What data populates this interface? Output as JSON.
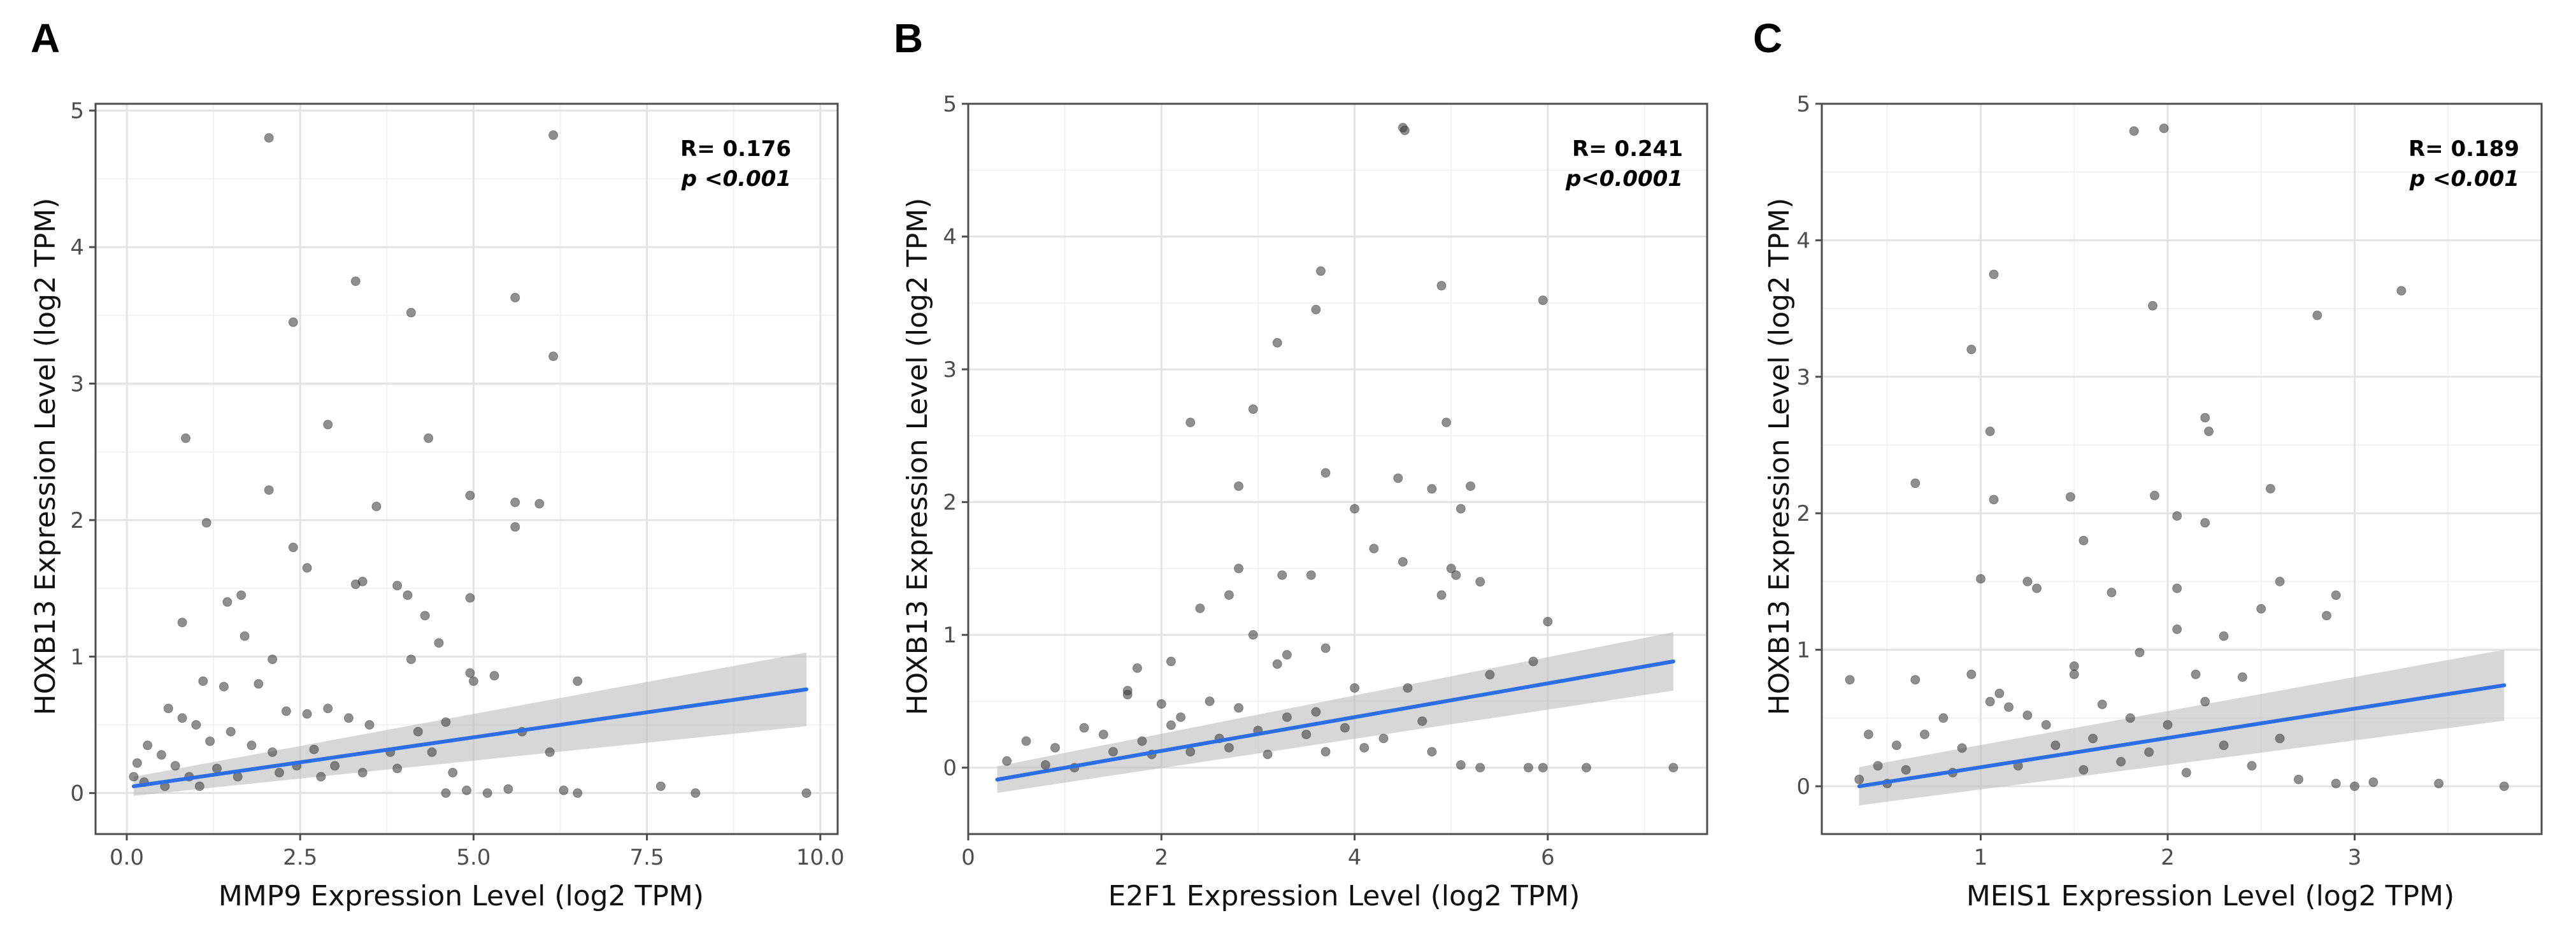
{
  "chart_data": [
    {
      "panel": "A",
      "type": "scatter",
      "xlabel": "MMP9 Expression Level (log2 TPM)",
      "ylabel": "HOXB13 Expression Level (log2 TPM)",
      "xlim": [
        -0.45,
        10.25
      ],
      "ylim": [
        -0.3,
        5.05
      ],
      "xticks": [
        0,
        2.5,
        5,
        7.5,
        10
      ],
      "xtick_labels": [
        "0.0",
        "2.5",
        "5.0",
        "7.5",
        "10.0"
      ],
      "xminor": [
        1.25,
        3.75,
        6.25,
        8.75
      ],
      "yticks": [
        0,
        1,
        2,
        3,
        4,
        5
      ],
      "yminor": [
        0.5,
        1.5,
        2.5,
        3.5,
        4.5
      ],
      "r_text": "R= 0.176",
      "p_text": "p <0.001",
      "fit": {
        "x0": 0.1,
        "x1": 9.8,
        "y0": 0.05,
        "y1": 0.76,
        "band0": 0.07,
        "band1": 0.27
      },
      "points": [
        [
          2.05,
          4.8
        ],
        [
          6.15,
          4.82
        ],
        [
          3.3,
          3.75
        ],
        [
          4.1,
          3.52
        ],
        [
          5.6,
          3.63
        ],
        [
          2.4,
          3.45
        ],
        [
          6.15,
          3.2
        ],
        [
          2.9,
          2.7
        ],
        [
          4.35,
          2.6
        ],
        [
          0.85,
          2.6
        ],
        [
          2.05,
          2.22
        ],
        [
          3.6,
          2.1
        ],
        [
          4.95,
          2.18
        ],
        [
          5.6,
          2.13
        ],
        [
          5.95,
          2.12
        ],
        [
          5.6,
          1.95
        ],
        [
          1.15,
          1.98
        ],
        [
          2.4,
          1.8
        ],
        [
          2.6,
          1.65
        ],
        [
          3.3,
          1.53
        ],
        [
          3.4,
          1.55
        ],
        [
          3.9,
          1.52
        ],
        [
          4.05,
          1.45
        ],
        [
          4.3,
          1.3
        ],
        [
          4.95,
          1.43
        ],
        [
          1.65,
          1.45
        ],
        [
          1.45,
          1.4
        ],
        [
          0.8,
          1.25
        ],
        [
          1.7,
          1.15
        ],
        [
          4.5,
          1.1
        ],
        [
          4.1,
          0.98
        ],
        [
          2.1,
          0.98
        ],
        [
          4.95,
          0.88
        ],
        [
          5.0,
          0.82
        ],
        [
          5.3,
          0.86
        ],
        [
          6.5,
          0.82
        ],
        [
          1.1,
          0.82
        ],
        [
          1.4,
          0.78
        ],
        [
          1.9,
          0.8
        ],
        [
          0.6,
          0.62
        ],
        [
          0.8,
          0.55
        ],
        [
          1.0,
          0.5
        ],
        [
          1.5,
          0.45
        ],
        [
          2.3,
          0.6
        ],
        [
          2.6,
          0.58
        ],
        [
          2.9,
          0.62
        ],
        [
          3.2,
          0.55
        ],
        [
          3.5,
          0.5
        ],
        [
          4.2,
          0.45
        ],
        [
          4.6,
          0.52
        ],
        [
          5.7,
          0.45
        ],
        [
          6.1,
          0.3
        ],
        [
          0.3,
          0.35
        ],
        [
          0.5,
          0.28
        ],
        [
          0.7,
          0.2
        ],
        [
          1.2,
          0.38
        ],
        [
          1.8,
          0.35
        ],
        [
          2.1,
          0.3
        ],
        [
          2.7,
          0.32
        ],
        [
          3.0,
          0.2
        ],
        [
          3.8,
          0.3
        ],
        [
          4.4,
          0.3
        ],
        [
          0.1,
          0.12
        ],
        [
          0.25,
          0.08
        ],
        [
          0.9,
          0.12
        ],
        [
          1.3,
          0.18
        ],
        [
          1.6,
          0.12
        ],
        [
          2.2,
          0.15
        ],
        [
          2.8,
          0.12
        ],
        [
          3.4,
          0.15
        ],
        [
          3.9,
          0.18
        ],
        [
          4.7,
          0.15
        ],
        [
          0.15,
          0.22
        ],
        [
          0.55,
          0.05
        ],
        [
          1.05,
          0.05
        ],
        [
          2.45,
          0.2
        ],
        [
          7.7,
          0.05
        ],
        [
          8.2,
          0.0
        ],
        [
          9.8,
          0.0
        ],
        [
          6.5,
          0.0
        ],
        [
          6.3,
          0.02
        ],
        [
          5.5,
          0.03
        ],
        [
          5.2,
          0.0
        ],
        [
          4.9,
          0.02
        ],
        [
          4.6,
          0.0
        ]
      ]
    },
    {
      "panel": "B",
      "type": "scatter",
      "xlabel": "E2F1 Expression Level (log2 TPM)",
      "ylabel": "HOXB13 Expression Level (log2 TPM)",
      "xlim": [
        0.0,
        7.65
      ],
      "ylim": [
        -0.5,
        5.0
      ],
      "xticks": [
        0,
        2,
        4,
        6
      ],
      "xtick_labels": [
        "0",
        "2",
        "4",
        "6"
      ],
      "xminor": [
        1,
        3,
        5,
        7
      ],
      "yticks": [
        0,
        1,
        2,
        3,
        4,
        5
      ],
      "yminor": [
        0.5,
        1.5,
        2.5,
        3.5,
        4.5
      ],
      "r_text": "R= 0.241",
      "p_text": "p<0.0001",
      "fit": {
        "x0": 0.3,
        "x1": 7.3,
        "y0": -0.09,
        "y1": 0.8,
        "band0": 0.1,
        "band1": 0.22
      },
      "points": [
        [
          4.5,
          4.82
        ],
        [
          4.52,
          4.8
        ],
        [
          3.65,
          3.74
        ],
        [
          3.6,
          3.45
        ],
        [
          4.9,
          3.63
        ],
        [
          5.95,
          3.52
        ],
        [
          3.2,
          3.2
        ],
        [
          2.95,
          2.7
        ],
        [
          2.3,
          2.6
        ],
        [
          4.95,
          2.6
        ],
        [
          3.7,
          2.22
        ],
        [
          4.45,
          2.18
        ],
        [
          4.8,
          2.1
        ],
        [
          5.2,
          2.12
        ],
        [
          2.8,
          2.12
        ],
        [
          5.1,
          1.95
        ],
        [
          4.0,
          1.95
        ],
        [
          4.2,
          1.65
        ],
        [
          4.5,
          1.55
        ],
        [
          5.0,
          1.5
        ],
        [
          5.05,
          1.45
        ],
        [
          5.3,
          1.4
        ],
        [
          3.25,
          1.45
        ],
        [
          3.55,
          1.45
        ],
        [
          2.8,
          1.5
        ],
        [
          2.7,
          1.3
        ],
        [
          2.4,
          1.2
        ],
        [
          2.95,
          1.0
        ],
        [
          4.9,
          1.3
        ],
        [
          6.0,
          1.1
        ],
        [
          3.7,
          0.9
        ],
        [
          3.3,
          0.85
        ],
        [
          3.2,
          0.78
        ],
        [
          2.1,
          0.8
        ],
        [
          1.75,
          0.75
        ],
        [
          1.65,
          0.58
        ],
        [
          1.65,
          0.55
        ],
        [
          2.0,
          0.48
        ],
        [
          2.2,
          0.38
        ],
        [
          2.5,
          0.5
        ],
        [
          2.8,
          0.45
        ],
        [
          3.3,
          0.38
        ],
        [
          3.6,
          0.42
        ],
        [
          4.0,
          0.6
        ],
        [
          4.55,
          0.6
        ],
        [
          5.4,
          0.7
        ],
        [
          5.85,
          0.8
        ],
        [
          1.2,
          0.3
        ],
        [
          1.4,
          0.25
        ],
        [
          1.8,
          0.2
        ],
        [
          2.1,
          0.32
        ],
        [
          2.6,
          0.22
        ],
        [
          3.0,
          0.28
        ],
        [
          3.5,
          0.25
        ],
        [
          3.9,
          0.3
        ],
        [
          4.3,
          0.22
        ],
        [
          4.7,
          0.35
        ],
        [
          0.6,
          0.2
        ],
        [
          0.9,
          0.15
        ],
        [
          1.5,
          0.12
        ],
        [
          1.9,
          0.1
        ],
        [
          2.3,
          0.12
        ],
        [
          2.7,
          0.15
        ],
        [
          3.1,
          0.1
        ],
        [
          3.7,
          0.12
        ],
        [
          4.1,
          0.15
        ],
        [
          4.8,
          0.12
        ],
        [
          0.4,
          0.05
        ],
        [
          0.8,
          0.02
        ],
        [
          1.1,
          0.0
        ],
        [
          5.8,
          0.0
        ],
        [
          5.95,
          0.0
        ],
        [
          6.4,
          0.0
        ],
        [
          7.3,
          0.0
        ],
        [
          5.3,
          0.0
        ],
        [
          5.1,
          0.02
        ]
      ]
    },
    {
      "panel": "C",
      "type": "scatter",
      "xlabel": "MEIS1 Expression Level (log2 TPM)",
      "ylabel": "HOXB13 Expression Level (log2 TPM)",
      "xlim": [
        0.15,
        4.0
      ],
      "ylim": [
        -0.35,
        5.0
      ],
      "xticks": [
        1,
        2,
        3
      ],
      "xtick_labels": [
        "1",
        "2",
        "3"
      ],
      "xminor": [
        0.5,
        1.5,
        2.5,
        3.5
      ],
      "yticks": [
        0,
        1,
        2,
        3,
        4,
        5
      ],
      "yminor": [
        0.5,
        1.5,
        2.5,
        3.5,
        4.5
      ],
      "r_text": "R= 0.189",
      "p_text": "p <0.001",
      "fit": {
        "x0": 0.35,
        "x1": 3.8,
        "y0": 0.0,
        "y1": 0.74,
        "band0": 0.14,
        "band1": 0.26
      },
      "points": [
        [
          1.82,
          4.8
        ],
        [
          1.98,
          4.82
        ],
        [
          1.07,
          3.75
        ],
        [
          1.92,
          3.52
        ],
        [
          3.25,
          3.63
        ],
        [
          2.8,
          3.45
        ],
        [
          0.95,
          3.2
        ],
        [
          2.2,
          2.7
        ],
        [
          2.22,
          2.6
        ],
        [
          1.05,
          2.6
        ],
        [
          0.65,
          2.22
        ],
        [
          1.93,
          2.13
        ],
        [
          1.48,
          2.12
        ],
        [
          2.55,
          2.18
        ],
        [
          1.07,
          2.1
        ],
        [
          2.2,
          1.93
        ],
        [
          2.05,
          1.98
        ],
        [
          1.55,
          1.8
        ],
        [
          1.0,
          1.52
        ],
        [
          1.25,
          1.5
        ],
        [
          1.3,
          1.45
        ],
        [
          2.05,
          1.45
        ],
        [
          2.6,
          1.5
        ],
        [
          2.9,
          1.4
        ],
        [
          2.85,
          1.25
        ],
        [
          1.7,
          1.42
        ],
        [
          2.5,
          1.3
        ],
        [
          2.3,
          1.1
        ],
        [
          2.05,
          1.15
        ],
        [
          1.85,
          0.98
        ],
        [
          0.3,
          0.78
        ],
        [
          0.65,
          0.78
        ],
        [
          0.95,
          0.82
        ],
        [
          2.15,
          0.82
        ],
        [
          1.5,
          0.88
        ],
        [
          1.5,
          0.82
        ],
        [
          2.4,
          0.8
        ],
        [
          1.1,
          0.68
        ],
        [
          1.05,
          0.62
        ],
        [
          1.15,
          0.58
        ],
        [
          1.25,
          0.52
        ],
        [
          1.35,
          0.45
        ],
        [
          1.65,
          0.6
        ],
        [
          1.8,
          0.5
        ],
        [
          2.0,
          0.45
        ],
        [
          2.2,
          0.62
        ],
        [
          0.8,
          0.5
        ],
        [
          0.7,
          0.38
        ],
        [
          0.4,
          0.38
        ],
        [
          0.55,
          0.3
        ],
        [
          0.9,
          0.28
        ],
        [
          1.4,
          0.3
        ],
        [
          1.6,
          0.35
        ],
        [
          1.9,
          0.25
        ],
        [
          2.3,
          0.3
        ],
        [
          2.6,
          0.35
        ],
        [
          0.45,
          0.15
        ],
        [
          0.6,
          0.12
        ],
        [
          0.85,
          0.1
        ],
        [
          1.2,
          0.15
        ],
        [
          1.55,
          0.12
        ],
        [
          1.75,
          0.18
        ],
        [
          2.1,
          0.1
        ],
        [
          2.45,
          0.15
        ],
        [
          0.35,
          0.05
        ],
        [
          0.5,
          0.02
        ],
        [
          2.7,
          0.05
        ],
        [
          2.9,
          0.02
        ],
        [
          3.0,
          0.0
        ],
        [
          3.1,
          0.03
        ],
        [
          3.45,
          0.02
        ],
        [
          3.8,
          0.0
        ]
      ]
    }
  ]
}
